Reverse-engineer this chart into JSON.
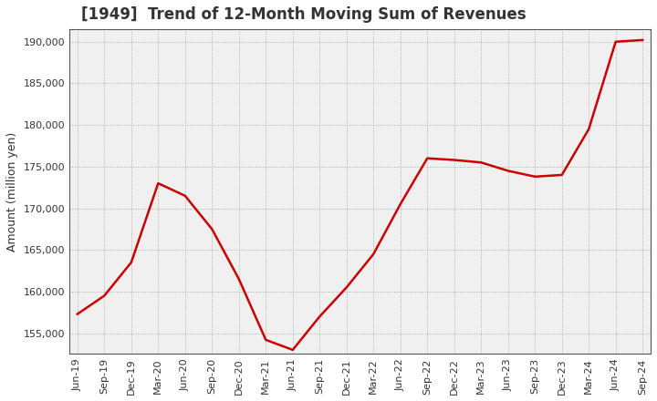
{
  "title": "[1949]  Trend of 12-Month Moving Sum of Revenues",
  "ylabel": "Amount (million yen)",
  "line_color": "#cc0000",
  "line_width": 1.8,
  "plot_bg_color": "#f0f0f0",
  "fig_bg_color": "#ffffff",
  "grid_color": "#aaaaaa",
  "spine_color": "#555555",
  "ylim": [
    152500,
    191500
  ],
  "yticks": [
    155000,
    160000,
    165000,
    170000,
    175000,
    180000,
    185000,
    190000
  ],
  "x_labels": [
    "Jun-19",
    "Sep-19",
    "Dec-19",
    "Mar-20",
    "Jun-20",
    "Sep-20",
    "Dec-20",
    "Mar-21",
    "Jun-21",
    "Sep-21",
    "Dec-21",
    "Mar-22",
    "Jun-22",
    "Sep-22",
    "Dec-22",
    "Mar-23",
    "Jun-23",
    "Sep-23",
    "Dec-23",
    "Mar-24",
    "Jun-24",
    "Sep-24"
  ],
  "values": [
    157300,
    159500,
    163500,
    173000,
    171500,
    167500,
    161500,
    154200,
    153000,
    157000,
    160500,
    164500,
    170500,
    176000,
    175800,
    175500,
    174500,
    173800,
    174000,
    179500,
    190000,
    190200
  ],
  "title_fontsize": 12,
  "title_color": "#333333",
  "tick_label_fontsize": 8,
  "ylabel_fontsize": 9
}
